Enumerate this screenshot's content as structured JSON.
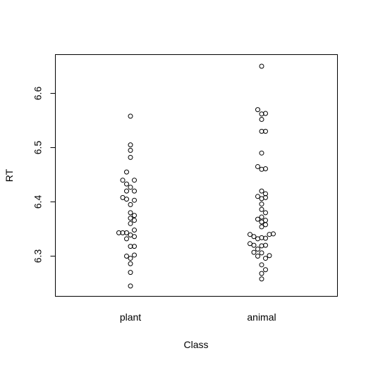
{
  "chart_data": {
    "type": "scatter",
    "title": "",
    "xlabel": "Class",
    "ylabel": "RT",
    "categories": [
      "plant",
      "animal"
    ],
    "yticks": [
      "6.3",
      "6.4",
      "6.5",
      "6.6"
    ],
    "ylim": [
      6.22,
      6.67
    ],
    "grid": false,
    "legend": "none",
    "series": [
      {
        "category": "plant",
        "points": [
          [
            0,
            6.558
          ],
          [
            0,
            6.505
          ],
          [
            0,
            6.495
          ],
          [
            0,
            6.482
          ],
          [
            -1,
            6.455
          ],
          [
            -2,
            6.44
          ],
          [
            1,
            6.44
          ],
          [
            -1,
            6.433
          ],
          [
            0,
            6.427
          ],
          [
            -1,
            6.42
          ],
          [
            1,
            6.42
          ],
          [
            -2,
            6.408
          ],
          [
            -1,
            6.405
          ],
          [
            1,
            6.403
          ],
          [
            0,
            6.395
          ],
          [
            0,
            6.38
          ],
          [
            1,
            6.375
          ],
          [
            0,
            6.37
          ],
          [
            1,
            6.366
          ],
          [
            0,
            6.36
          ],
          [
            -3,
            6.343
          ],
          [
            -2,
            6.343
          ],
          [
            -1,
            6.343
          ],
          [
            1,
            6.348
          ],
          [
            0,
            6.339
          ],
          [
            1,
            6.336
          ],
          [
            -1,
            6.332
          ],
          [
            0,
            6.318
          ],
          [
            1,
            6.318
          ],
          [
            -1,
            6.3
          ],
          [
            1,
            6.302
          ],
          [
            0,
            6.296
          ],
          [
            0,
            6.286
          ],
          [
            0,
            6.27
          ],
          [
            0,
            6.245
          ]
        ]
      },
      {
        "category": "animal",
        "points": [
          [
            0,
            6.65
          ],
          [
            -1,
            6.57
          ],
          [
            0,
            6.562
          ],
          [
            1,
            6.563
          ],
          [
            0,
            6.552
          ],
          [
            0,
            6.53
          ],
          [
            1,
            6.53
          ],
          [
            0,
            6.49
          ],
          [
            -1,
            6.465
          ],
          [
            0,
            6.46
          ],
          [
            1,
            6.461
          ],
          [
            0,
            6.42
          ],
          [
            1,
            6.415
          ],
          [
            -1,
            6.41
          ],
          [
            0,
            6.406
          ],
          [
            1,
            6.408
          ],
          [
            0,
            6.396
          ],
          [
            0,
            6.386
          ],
          [
            1,
            6.38
          ],
          [
            0,
            6.372
          ],
          [
            -1,
            6.368
          ],
          [
            0,
            6.363
          ],
          [
            1,
            6.366
          ],
          [
            1,
            6.358
          ],
          [
            0,
            6.354
          ],
          [
            -3,
            6.34
          ],
          [
            -2,
            6.336
          ],
          [
            2,
            6.34
          ],
          [
            3,
            6.341
          ],
          [
            0,
            6.334
          ],
          [
            1,
            6.333
          ],
          [
            -1,
            6.332
          ],
          [
            -3,
            6.323
          ],
          [
            -2,
            6.32
          ],
          [
            0,
            6.319
          ],
          [
            1,
            6.32
          ],
          [
            -1,
            6.313
          ],
          [
            -2,
            6.307
          ],
          [
            0,
            6.306
          ],
          [
            2,
            6.301
          ],
          [
            -1,
            6.3
          ],
          [
            1,
            6.296
          ],
          [
            0,
            6.284
          ],
          [
            1,
            6.275
          ],
          [
            0,
            6.268
          ],
          [
            0,
            6.258
          ]
        ]
      }
    ]
  }
}
